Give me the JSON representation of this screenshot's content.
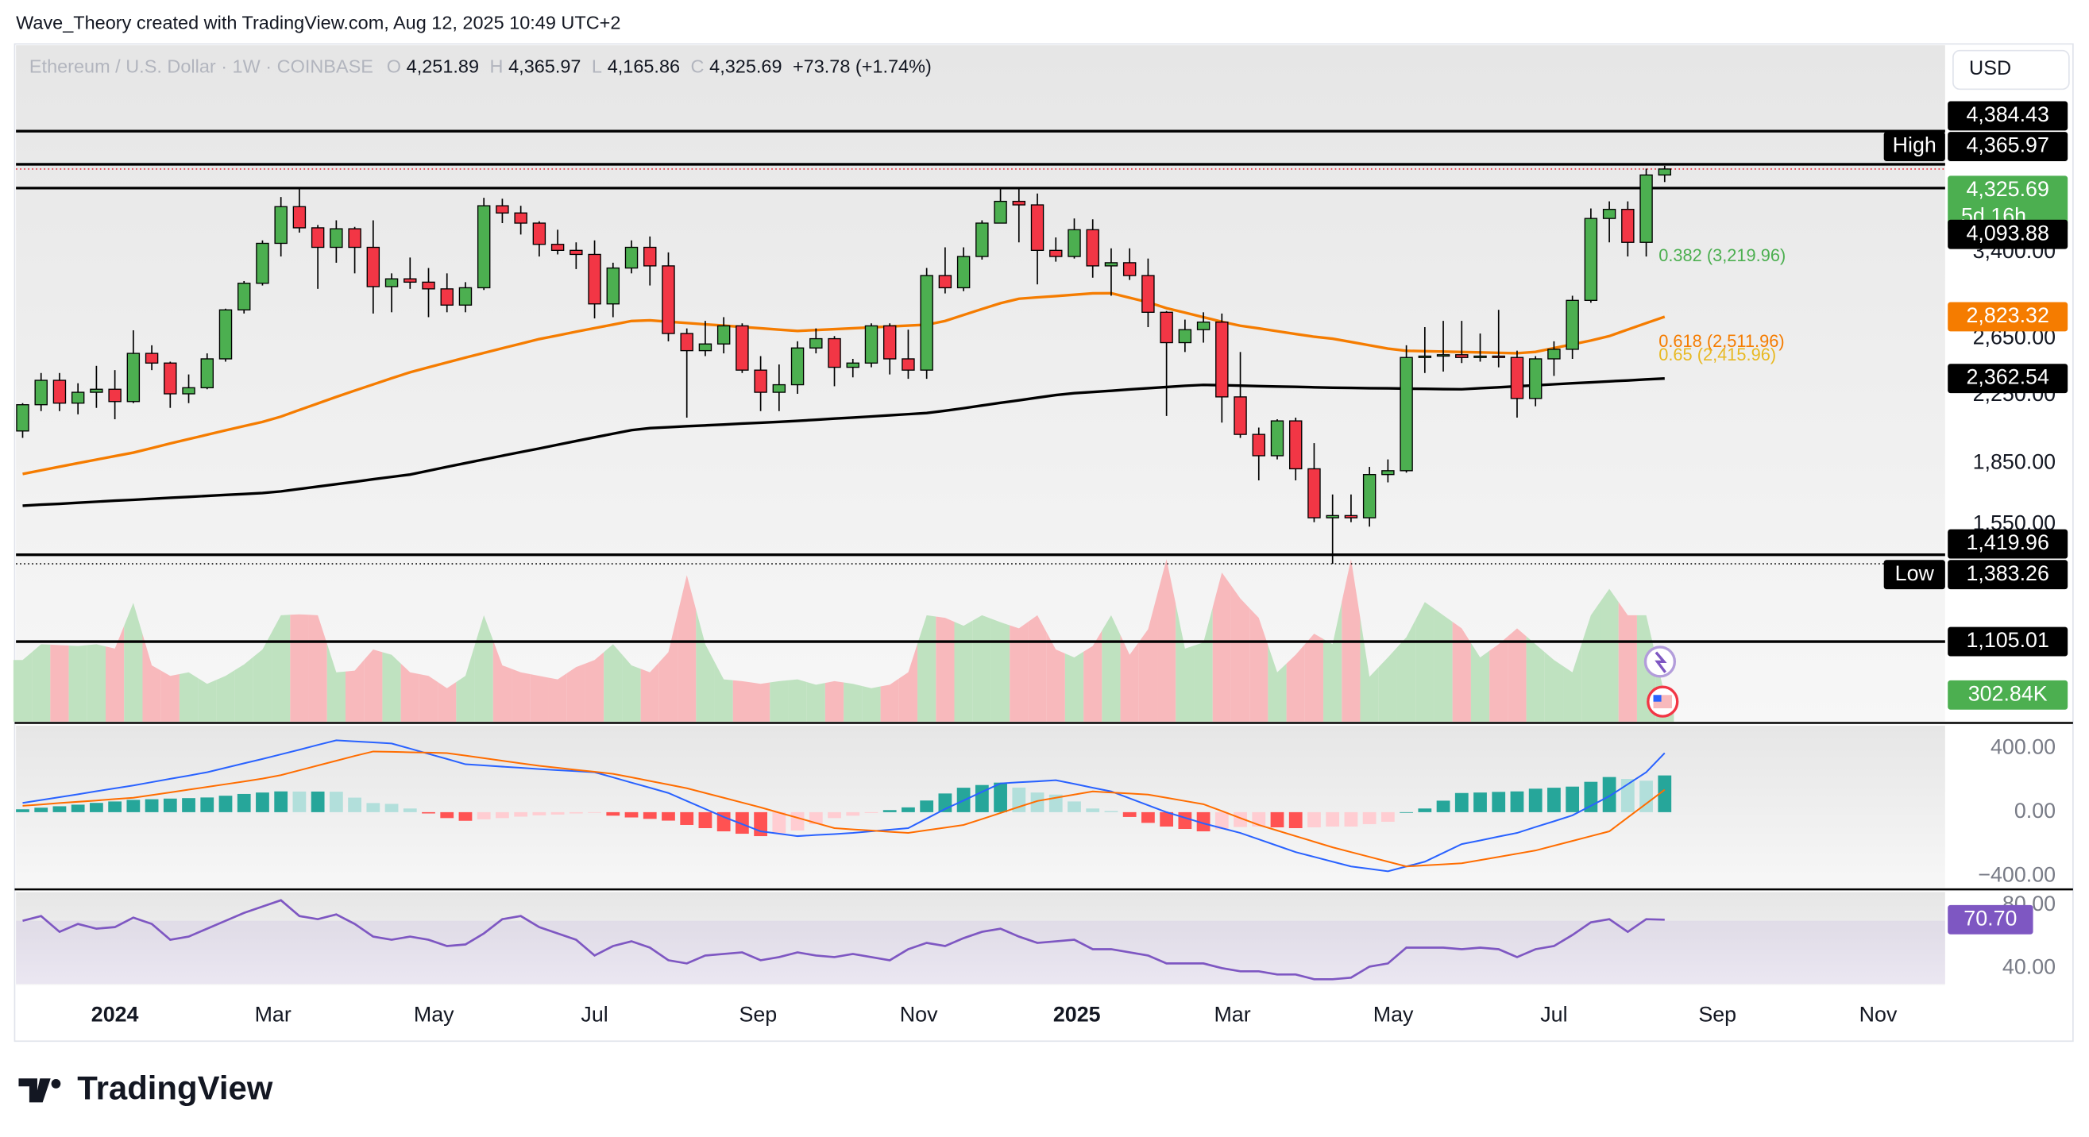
{
  "header": {
    "attribution": "Wave_Theory created with TradingView.com, Aug 12, 2025 10:49 UTC+2",
    "symbol": "Ethereum / U.S. Dollar · 1W · COINBASE",
    "ohlc": [
      {
        "key": "O",
        "value": "4,251.89"
      },
      {
        "key": "H",
        "value": "4,365.97"
      },
      {
        "key": "L",
        "value": "4,165.86"
      },
      {
        "key": "C",
        "value": "4,325.69"
      }
    ],
    "change": "+73.78 (+1.74%)",
    "currency": "USD"
  },
  "footer": {
    "brand": "TradingView"
  },
  "chart_data": {
    "type": "candlestick",
    "log_scale": true,
    "ylim": [
      877,
      6160
    ],
    "yticks": [
      {
        "value": 1550,
        "label": "1,550.00"
      },
      {
        "value": 1850,
        "label": "1,850.00"
      },
      {
        "value": 2250,
        "label": "2,250.00"
      },
      {
        "value": 2650,
        "label": "2,650.00"
      },
      {
        "value": 3400,
        "label": "3,400.00"
      }
    ],
    "xlim": [
      -0.36,
      104.2
    ],
    "xticks": [
      {
        "value": 5,
        "label": "2024",
        "bold": true
      },
      {
        "value": 13.57,
        "label": "Mar"
      },
      {
        "value": 22.29,
        "label": "May"
      },
      {
        "value": 31,
        "label": "Jul"
      },
      {
        "value": 39.86,
        "label": "Sep"
      },
      {
        "value": 48.57,
        "label": "Nov"
      },
      {
        "value": 57.14,
        "label": "2025",
        "bold": true
      },
      {
        "value": 65.57,
        "label": "Mar"
      },
      {
        "value": 74.29,
        "label": "May"
      },
      {
        "value": 83,
        "label": "Jul"
      },
      {
        "value": 91.86,
        "label": "Sep"
      },
      {
        "value": 100.57,
        "label": "Nov"
      }
    ],
    "up_color": "#4caf50",
    "down_color": "#f23645",
    "open": [
      2030,
      2190,
      2350,
      2200,
      2270,
      2290,
      2210,
      2540,
      2470,
      2260,
      2300,
      2500,
      2880,
      3110,
      3490,
      3880,
      3650,
      3450,
      3640,
      3450,
      3080,
      3150,
      3120,
      3060,
      2920,
      3070,
      3890,
      3810,
      3700,
      3480,
      3420,
      3380,
      2930,
      3250,
      3450,
      3270,
      2690,
      2560,
      2610,
      2750,
      2420,
      2270,
      2320,
      2580,
      2650,
      2440,
      2470,
      2750,
      2500,
      2420,
      3180,
      3070,
      3360,
      3700,
      3940,
      3900,
      3420,
      3360,
      3630,
      3270,
      3300,
      3180,
      2860,
      2620,
      2720,
      2780,
      2240,
      2010,
      1890,
      2090,
      1820,
      1580,
      1590,
      1580,
      1790,
      1810,
      2510,
      2520,
      2530,
      2510,
      2520,
      2510,
      2230,
      2500,
      2570,
      2960,
      3750,
      3850,
      3500,
      4251.89
    ],
    "high": [
      2200,
      2400,
      2400,
      2330,
      2450,
      2420,
      2715,
      2600,
      2480,
      2390,
      2540,
      2890,
      3130,
      3520,
      3990,
      4093.88,
      3680,
      3730,
      3660,
      3730,
      3200,
      3350,
      3250,
      3200,
      3120,
      3980,
      3970,
      3890,
      3720,
      3630,
      3500,
      3520,
      3300,
      3520,
      3560,
      3400,
      2730,
      2790,
      2820,
      2770,
      2520,
      2460,
      2630,
      2730,
      2670,
      2500,
      2770,
      2770,
      2720,
      3250,
      3450,
      3450,
      3730,
      4090,
      4090,
      4030,
      3550,
      3750,
      3740,
      3440,
      3440,
      3340,
      2870,
      2800,
      2860,
      2850,
      2550,
      2050,
      2100,
      2110,
      1960,
      1690,
      1690,
      1830,
      1870,
      2600,
      2740,
      2790,
      2790,
      2690,
      2880,
      2560,
      2520,
      2630,
      3000,
      3860,
      3940,
      3940,
      4330,
      4365.97
    ],
    "low": [
      1990,
      2150,
      2150,
      2130,
      2170,
      2100,
      2200,
      2420,
      2170,
      2200,
      2290,
      2480,
      2850,
      3090,
      3360,
      3600,
      3060,
      3300,
      3200,
      2850,
      2860,
      3060,
      2820,
      2860,
      2860,
      3050,
      3700,
      3580,
      3360,
      3380,
      3240,
      2810,
      2820,
      3200,
      3090,
      2630,
      2110,
      2520,
      2540,
      2400,
      2150,
      2150,
      2260,
      2540,
      2310,
      2370,
      2440,
      2390,
      2360,
      2360,
      3020,
      3040,
      3330,
      3700,
      3500,
      3100,
      3310,
      3340,
      3160,
      3000,
      3140,
      2740,
      2120,
      2550,
      2620,
      2080,
      1990,
      1760,
      1870,
      1760,
      1560,
      1383.26,
      1560,
      1540,
      1750,
      1800,
      2400,
      2410,
      2470,
      2480,
      2440,
      2110,
      2180,
      2380,
      2500,
      2940,
      3500,
      3360,
      3360,
      4165.86
    ],
    "close": [
      2190,
      2350,
      2200,
      2270,
      2290,
      2210,
      2540,
      2470,
      2260,
      2300,
      2500,
      2880,
      3110,
      3490,
      3880,
      3650,
      3450,
      3640,
      3450,
      3080,
      3150,
      3120,
      3060,
      2920,
      3070,
      3890,
      3810,
      3700,
      3480,
      3420,
      3380,
      2930,
      3250,
      3450,
      3270,
      2690,
      2560,
      2610,
      2750,
      2420,
      2270,
      2320,
      2580,
      2650,
      2440,
      2470,
      2750,
      2500,
      2420,
      3180,
      3070,
      3360,
      3700,
      3940,
      3900,
      3420,
      3360,
      3630,
      3270,
      3300,
      3180,
      2860,
      2620,
      2720,
      2780,
      2240,
      2010,
      1890,
      2090,
      1820,
      1580,
      1590,
      1580,
      1790,
      1810,
      2510,
      2520,
      2530,
      2510,
      2520,
      2510,
      2230,
      2500,
      2570,
      2960,
      3750,
      3850,
      3500,
      4251.89,
      4325.69
    ],
    "moving_averages": [
      {
        "color": "#f57c00",
        "values": [
          1793,
          1812,
          1831,
          1850,
          1869,
          1888,
          1907,
          1932,
          1958,
          1983,
          2008,
          2034,
          2059,
          2084,
          2116,
          2157,
          2198,
          2240,
          2281,
          2322,
          2364,
          2405,
          2440,
          2474,
          2509,
          2543,
          2578,
          2612,
          2647,
          2675,
          2704,
          2732,
          2760,
          2789,
          2794,
          2783,
          2773,
          2762,
          2752,
          2741,
          2731,
          2720,
          2710,
          2717,
          2724,
          2731,
          2738,
          2745,
          2752,
          2759,
          2789,
          2838,
          2887,
          2936,
          2974,
          2986,
          2997,
          3009,
          3021,
          3022,
          2983,
          2944,
          2894,
          2857,
          2820,
          2783,
          2751,
          2730,
          2708,
          2686,
          2665,
          2650,
          2625,
          2600,
          2575,
          2559,
          2556,
          2553,
          2550,
          2547,
          2544,
          2541,
          2551,
          2579,
          2607,
          2636,
          2670,
          2721,
          2772,
          2823.32
        ]
      },
      {
        "color": "#000000",
        "values": [
          1636,
          1641,
          1645,
          1650,
          1655,
          1660,
          1664,
          1669,
          1674,
          1678,
          1683,
          1688,
          1692,
          1697,
          1705,
          1717,
          1729,
          1741,
          1753,
          1766,
          1778,
          1790,
          1810,
          1830,
          1850,
          1870,
          1890,
          1910,
          1930,
          1951,
          1972,
          1993,
          2014,
          2035,
          2047,
          2052,
          2058,
          2063,
          2068,
          2074,
          2079,
          2084,
          2090,
          2097,
          2104,
          2110,
          2117,
          2124,
          2131,
          2138,
          2152,
          2168,
          2185,
          2202,
          2218,
          2235,
          2252,
          2264,
          2272,
          2280,
          2289,
          2297,
          2305,
          2313,
          2319,
          2317,
          2314,
          2311,
          2308,
          2306,
          2303,
          2300,
          2299,
          2297,
          2296,
          2294,
          2293,
          2291,
          2290,
          2297,
          2303,
          2310,
          2316,
          2323,
          2330,
          2336,
          2343,
          2349,
          2356,
          2362.54
        ]
      }
    ],
    "levels": [
      4825,
      4384.43,
      4093.88,
      1419.96,
      1105.01
    ],
    "price_labels": [
      {
        "value": 4384.43,
        "label": "4,384.43",
        "color": "#000000"
      },
      {
        "value": 4365.97,
        "label": "4,365.97",
        "tag": "High",
        "color": "#000000"
      },
      {
        "value": 4325.69,
        "label": "4,325.69",
        "note": "5d 16h",
        "color": "#4caf50",
        "line": "dotted",
        "line_color": "#f23645"
      },
      {
        "value": 4093.88,
        "label": "4,093.88",
        "color": "#000000"
      },
      {
        "value": 2823.32,
        "label": "2,823.32",
        "color": "#f57c00"
      },
      {
        "value": 2362.54,
        "label": "2,362.54",
        "color": "#000000"
      },
      {
        "value": 1419.96,
        "label": "1,419.96",
        "color": "#000000"
      },
      {
        "value": 1383.26,
        "label": "1,383.26",
        "tag": "Low",
        "color": "#000000",
        "line": "dotted",
        "line_color": "#000000"
      },
      {
        "value": 1105.01,
        "label": "1,105.01",
        "color": "#000000"
      }
    ],
    "fib_levels": [
      {
        "label": "0.382 (3,219.96)",
        "value": 3219.96,
        "color": "#4caf50"
      },
      {
        "label": "0.618 (2,511.96)",
        "value": 2511.96,
        "color": "#f57c00"
      },
      {
        "label": "0.65 (2,415.96)",
        "value": 2415.96,
        "color": "#e8b923"
      }
    ],
    "volume": {
      "ylim": [
        0,
        1847
      ],
      "up_color": "#bfe2c0",
      "down_color": "#f8b9bc",
      "values": [
        700,
        880,
        870,
        860,
        880,
        830,
        1350,
        640,
        520,
        560,
        430,
        520,
        650,
        820,
        1210,
        1220,
        1210,
        560,
        580,
        820,
        760,
        560,
        520,
        380,
        520,
        1210,
        640,
        560,
        520,
        480,
        620,
        700,
        880,
        640,
        560,
        790,
        1665,
        880,
        480,
        460,
        430,
        460,
        480,
        420,
        460,
        430,
        380,
        420,
        560,
        1210,
        1180,
        1090,
        1210,
        1130,
        1060,
        1210,
        820,
        730,
        860,
        1210,
        760,
        1050,
        1847,
        830,
        900,
        1695,
        1400,
        1180,
        560,
        760,
        1000,
        880,
        1847,
        510,
        730,
        960,
        1360,
        1210,
        1060,
        730,
        880,
        1060,
        880,
        700,
        560,
        1210,
        1510,
        1210,
        1210,
        302.84
      ],
      "label": {
        "value": 302.84,
        "label": "302.84K",
        "color": "#4caf50"
      }
    },
    "macd": {
      "ylim": [
        -475,
        542
      ],
      "yticks": [
        {
          "value": 400,
          "label": "400.00"
        },
        {
          "value": 0,
          "label": "0.00"
        },
        {
          "value": -400,
          "label": "−400.00"
        }
      ],
      "macd_color": "#2962ff",
      "signal_color": "#ff6d00",
      "macd": [
        58,
        76,
        94,
        112,
        131,
        149,
        167,
        188,
        209,
        229,
        250,
        278,
        306,
        333,
        362,
        391,
        421,
        450,
        443,
        437,
        430,
        398,
        365,
        333,
        300,
        293,
        285,
        278,
        270,
        263,
        257,
        250,
        218,
        185,
        153,
        120,
        70,
        20,
        -30,
        -75,
        -120,
        -135,
        -150,
        -143,
        -137,
        -130,
        -120,
        -110,
        -100,
        -40,
        20,
        73,
        127,
        180,
        187,
        193,
        200,
        177,
        153,
        130,
        87,
        43,
        0,
        -35,
        -70,
        -100,
        -130,
        -170,
        -210,
        -250,
        -280,
        -310,
        -340,
        -355,
        -370,
        -340,
        -310,
        -255,
        -200,
        -177,
        -153,
        -130,
        -93,
        -57,
        -20,
        40,
        100,
        175,
        250,
        370
      ],
      "signal": [
        40,
        48,
        57,
        65,
        73,
        82,
        90,
        107,
        124,
        141,
        158,
        175,
        192,
        210,
        232,
        262,
        292,
        322,
        352,
        380,
        378,
        375,
        373,
        370,
        354,
        338,
        322,
        306,
        290,
        278,
        265,
        253,
        240,
        218,
        195,
        173,
        150,
        120,
        90,
        60,
        30,
        -3,
        -35,
        -68,
        -100,
        -108,
        -115,
        -123,
        -130,
        -113,
        -97,
        -80,
        -43,
        -5,
        33,
        70,
        90,
        110,
        130,
        123,
        117,
        110,
        90,
        70,
        50,
        7,
        -37,
        -80,
        -115,
        -150,
        -185,
        -220,
        -250,
        -280,
        -310,
        -340,
        -333,
        -327,
        -320,
        -300,
        -280,
        -260,
        -240,
        -210,
        -180,
        -150,
        -120,
        -33,
        53,
        140
      ],
      "histogram": [
        18,
        28,
        37,
        47,
        58,
        67,
        77,
        81,
        85,
        88,
        92,
        103,
        114,
        123,
        130,
        129,
        129,
        128,
        91,
        57,
        52,
        23,
        -8,
        -37,
        -54,
        -45,
        -37,
        -28,
        -20,
        -15,
        -8,
        -3,
        -22,
        -33,
        -42,
        -53,
        -80,
        -100,
        -120,
        -135,
        -150,
        -132,
        -115,
        -75,
        -37,
        -22,
        -5,
        13,
        30,
        73,
        117,
        153,
        170,
        185,
        154,
        123,
        110,
        67,
        23,
        7,
        -30,
        -67,
        -90,
        -105,
        -120,
        -107,
        -93,
        -90,
        -95,
        -100,
        -95,
        -90,
        -90,
        -75,
        -60,
        0,
        23,
        72,
        120,
        123,
        127,
        130,
        147,
        153,
        160,
        190,
        220,
        208,
        197,
        230
      ]
    },
    "rsi": {
      "ylim": [
        29.2,
        88.2
      ],
      "yticks": [
        {
          "value": 40,
          "label": "40.00"
        },
        {
          "value": 80,
          "label": "80.00"
        }
      ],
      "color": "#7e57c2",
      "band": [
        30,
        70
      ],
      "label": {
        "value": 70.7,
        "label": "70.70"
      },
      "values": [
        70,
        73,
        63,
        68,
        65,
        66,
        72,
        68,
        58,
        60,
        65,
        70,
        75,
        79,
        83,
        73,
        71,
        74,
        68,
        60,
        58,
        60,
        58,
        54,
        55,
        62,
        71,
        73,
        66,
        62,
        58,
        48,
        54,
        57,
        53,
        45,
        43,
        48,
        49,
        50,
        45,
        47,
        50,
        48,
        47,
        49,
        47,
        45,
        52,
        56,
        54,
        59,
        63,
        65,
        60,
        56,
        57,
        58,
        52,
        52,
        50,
        48,
        43,
        43,
        43,
        40,
        38,
        38,
        36,
        36,
        33,
        33,
        34,
        41,
        43,
        53,
        53,
        53,
        52,
        53,
        52,
        47,
        52,
        54,
        61,
        69,
        71,
        63,
        71,
        70.7
      ]
    }
  }
}
